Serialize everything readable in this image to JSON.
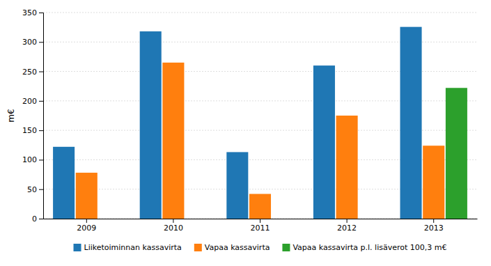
{
  "chart_data": {
    "type": "bar",
    "categories": [
      "2009",
      "2010",
      "2011",
      "2012",
      "2013"
    ],
    "series": [
      {
        "name": "Liiketoiminnan kassavirta",
        "values": [
          122,
          318,
          113,
          260,
          325.6
        ]
      },
      {
        "name": "Vapaa kassavirta",
        "values": [
          78,
          265,
          42,
          175,
          123.9
        ]
      },
      {
        "name": "Vapaa kassavirta p.l. lisäverot 100,3 m€",
        "values": [
          0,
          0,
          0,
          0,
          222
        ]
      }
    ],
    "ylabel": "m€",
    "ylim": [
      0,
      350
    ],
    "yticks": [
      0,
      50,
      100,
      150,
      200,
      250,
      300,
      350
    ],
    "grid": true,
    "legend": "bottom"
  }
}
